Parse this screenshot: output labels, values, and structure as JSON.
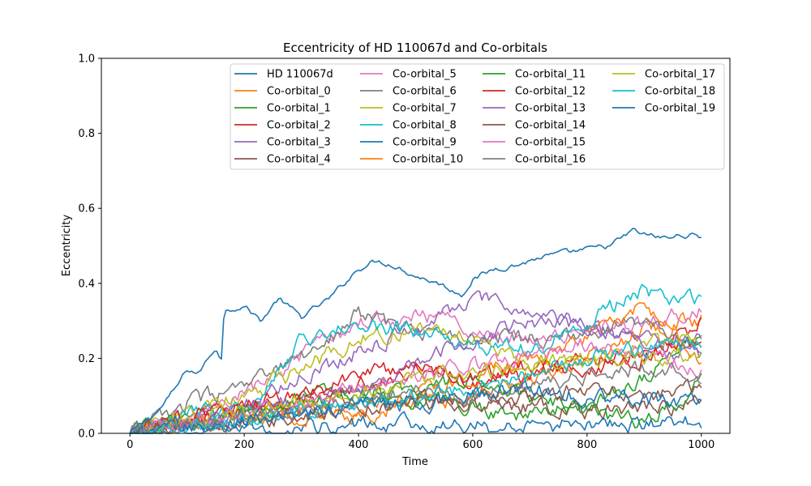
{
  "chart_data": {
    "type": "line",
    "title": "Eccentricity of HD 110067d and Co-orbitals",
    "xlabel": "Time",
    "ylabel": "Eccentricity",
    "xlim": [
      -50,
      1050
    ],
    "ylim": [
      0.0,
      1.0
    ],
    "xticks": [
      0,
      200,
      400,
      600,
      800,
      1000
    ],
    "yticks": [
      0.0,
      0.2,
      0.4,
      0.6,
      0.8,
      1.0
    ],
    "grid": false,
    "legend_position": "top-right",
    "legend_columns": 4,
    "series": [
      {
        "name": "HD 110067d",
        "color": "#1f77b4",
        "x": [
          0,
          50,
          80,
          100,
          120,
          150,
          160,
          165,
          200,
          230,
          260,
          300,
          350,
          400,
          430,
          460,
          500,
          540,
          580,
          600,
          640,
          680,
          720,
          760,
          800,
          840,
          880,
          900,
          940,
          970,
          1000
        ],
        "values": [
          0.0,
          0.06,
          0.12,
          0.17,
          0.16,
          0.23,
          0.2,
          0.33,
          0.34,
          0.3,
          0.36,
          0.31,
          0.36,
          0.44,
          0.46,
          0.45,
          0.42,
          0.4,
          0.37,
          0.41,
          0.44,
          0.45,
          0.47,
          0.48,
          0.49,
          0.5,
          0.54,
          0.53,
          0.52,
          0.53,
          0.525
        ]
      },
      {
        "name": "Co-orbital_0",
        "color": "#ff7f0e",
        "x": [
          0,
          100,
          200,
          300,
          400,
          500,
          600,
          700,
          800,
          900,
          1000
        ],
        "values": [
          0.0,
          0.03,
          0.05,
          0.06,
          0.05,
          0.08,
          0.1,
          0.15,
          0.2,
          0.28,
          0.3
        ]
      },
      {
        "name": "Co-orbital_1",
        "color": "#2ca02c",
        "x": [
          0,
          100,
          200,
          300,
          400,
          500,
          600,
          700,
          800,
          900,
          1000
        ],
        "values": [
          0.0,
          0.04,
          0.06,
          0.1,
          0.12,
          0.09,
          0.07,
          0.05,
          0.08,
          0.15,
          0.27
        ]
      },
      {
        "name": "Co-orbital_2",
        "color": "#d62728",
        "x": [
          0,
          100,
          200,
          300,
          400,
          500,
          600,
          700,
          800,
          900,
          1000
        ],
        "values": [
          0.0,
          0.03,
          0.06,
          0.1,
          0.16,
          0.18,
          0.14,
          0.16,
          0.2,
          0.22,
          0.29
        ]
      },
      {
        "name": "Co-orbital_3",
        "color": "#9467bd",
        "x": [
          0,
          100,
          200,
          300,
          400,
          500,
          600,
          700,
          800,
          900,
          1000
        ],
        "values": [
          0.0,
          0.02,
          0.08,
          0.15,
          0.22,
          0.28,
          0.36,
          0.32,
          0.29,
          0.26,
          0.25
        ]
      },
      {
        "name": "Co-orbital_4",
        "color": "#8c564b",
        "x": [
          0,
          100,
          200,
          300,
          400,
          500,
          600,
          700,
          800,
          900,
          1000
        ],
        "values": [
          0.0,
          0.03,
          0.05,
          0.07,
          0.09,
          0.1,
          0.08,
          0.07,
          0.06,
          0.07,
          0.08
        ]
      },
      {
        "name": "Co-orbital_5",
        "color": "#e377c2",
        "x": [
          0,
          100,
          200,
          300,
          400,
          500,
          600,
          700,
          800,
          900,
          1000
        ],
        "values": [
          0.0,
          0.04,
          0.1,
          0.2,
          0.3,
          0.32,
          0.28,
          0.25,
          0.27,
          0.3,
          0.33
        ]
      },
      {
        "name": "Co-orbital_6",
        "color": "#7f7f7f",
        "x": [
          0,
          100,
          200,
          300,
          400,
          500,
          600,
          700,
          800,
          900,
          1000
        ],
        "values": [
          0.0,
          0.08,
          0.12,
          0.2,
          0.32,
          0.27,
          0.26,
          0.25,
          0.27,
          0.3,
          0.2
        ]
      },
      {
        "name": "Co-orbital_7",
        "color": "#bcbd22",
        "x": [
          0,
          100,
          200,
          300,
          400,
          500,
          600,
          700,
          800,
          900,
          1000
        ],
        "values": [
          0.0,
          0.05,
          0.1,
          0.17,
          0.25,
          0.28,
          0.26,
          0.18,
          0.2,
          0.24,
          0.25
        ]
      },
      {
        "name": "Co-orbital_8",
        "color": "#17becf",
        "x": [
          0,
          100,
          200,
          300,
          400,
          500,
          600,
          700,
          800,
          900,
          1000
        ],
        "values": [
          0.0,
          0.05,
          0.06,
          0.25,
          0.29,
          0.27,
          0.24,
          0.22,
          0.3,
          0.38,
          0.35
        ]
      },
      {
        "name": "Co-orbital_9",
        "color": "#1f77b4",
        "x": [
          0,
          100,
          200,
          300,
          400,
          500,
          600,
          700,
          800,
          900,
          1000
        ],
        "values": [
          0.0,
          0.01,
          0.02,
          0.01,
          0.03,
          0.02,
          0.02,
          0.01,
          0.03,
          0.02,
          0.03
        ]
      },
      {
        "name": "Co-orbital_10",
        "color": "#ff7f0e",
        "x": [
          0,
          100,
          200,
          300,
          400,
          500,
          600,
          700,
          800,
          900,
          1000
        ],
        "values": [
          0.0,
          0.02,
          0.04,
          0.05,
          0.06,
          0.1,
          0.15,
          0.2,
          0.25,
          0.35,
          0.2
        ]
      },
      {
        "name": "Co-orbital_11",
        "color": "#2ca02c",
        "x": [
          0,
          100,
          200,
          300,
          400,
          500,
          600,
          700,
          800,
          900,
          1000
        ],
        "values": [
          0.0,
          0.03,
          0.06,
          0.08,
          0.1,
          0.12,
          0.15,
          0.1,
          0.05,
          0.03,
          0.13
        ]
      },
      {
        "name": "Co-orbital_12",
        "color": "#d62728",
        "x": [
          0,
          100,
          200,
          300,
          400,
          500,
          600,
          700,
          800,
          900,
          1000
        ],
        "values": [
          0.0,
          0.04,
          0.07,
          0.1,
          0.13,
          0.17,
          0.15,
          0.18,
          0.17,
          0.2,
          0.25
        ]
      },
      {
        "name": "Co-orbital_13",
        "color": "#9467bd",
        "x": [
          0,
          100,
          200,
          300,
          400,
          500,
          600,
          700,
          800,
          900,
          1000
        ],
        "values": [
          0.0,
          0.02,
          0.05,
          0.08,
          0.12,
          0.2,
          0.25,
          0.3,
          0.28,
          0.24,
          0.2
        ]
      },
      {
        "name": "Co-orbital_14",
        "color": "#8c564b",
        "x": [
          0,
          100,
          200,
          300,
          400,
          500,
          600,
          700,
          800,
          900,
          1000
        ],
        "values": [
          0.0,
          0.02,
          0.03,
          0.05,
          0.07,
          0.08,
          0.09,
          0.1,
          0.12,
          0.1,
          0.12
        ]
      },
      {
        "name": "Co-orbital_15",
        "color": "#e377c2",
        "x": [
          0,
          100,
          200,
          300,
          400,
          500,
          600,
          700,
          800,
          900,
          1000
        ],
        "values": [
          0.0,
          0.03,
          0.06,
          0.08,
          0.12,
          0.15,
          0.18,
          0.2,
          0.24,
          0.22,
          0.17
        ]
      },
      {
        "name": "Co-orbital_16",
        "color": "#7f7f7f",
        "x": [
          0,
          100,
          200,
          300,
          400,
          500,
          600,
          700,
          800,
          900,
          1000
        ],
        "values": [
          0.0,
          0.02,
          0.04,
          0.06,
          0.09,
          0.12,
          0.1,
          0.13,
          0.15,
          0.17,
          0.15
        ]
      },
      {
        "name": "Co-orbital_17",
        "color": "#bcbd22",
        "x": [
          0,
          100,
          200,
          300,
          400,
          500,
          600,
          700,
          800,
          900,
          1000
        ],
        "values": [
          0.0,
          0.03,
          0.05,
          0.08,
          0.1,
          0.15,
          0.16,
          0.18,
          0.2,
          0.2,
          0.2
        ]
      },
      {
        "name": "Co-orbital_18",
        "color": "#17becf",
        "x": [
          0,
          100,
          200,
          300,
          400,
          500,
          600,
          700,
          800,
          900,
          1000
        ],
        "values": [
          0.0,
          0.02,
          0.04,
          0.06,
          0.08,
          0.1,
          0.12,
          0.15,
          0.2,
          0.22,
          0.24
        ]
      },
      {
        "name": "Co-orbital_19",
        "color": "#1f77b4",
        "x": [
          0,
          100,
          200,
          300,
          400,
          500,
          600,
          700,
          800,
          900,
          1000
        ],
        "values": [
          0.0,
          0.02,
          0.03,
          0.05,
          0.07,
          0.08,
          0.1,
          0.12,
          0.1,
          0.09,
          0.07
        ]
      }
    ]
  }
}
